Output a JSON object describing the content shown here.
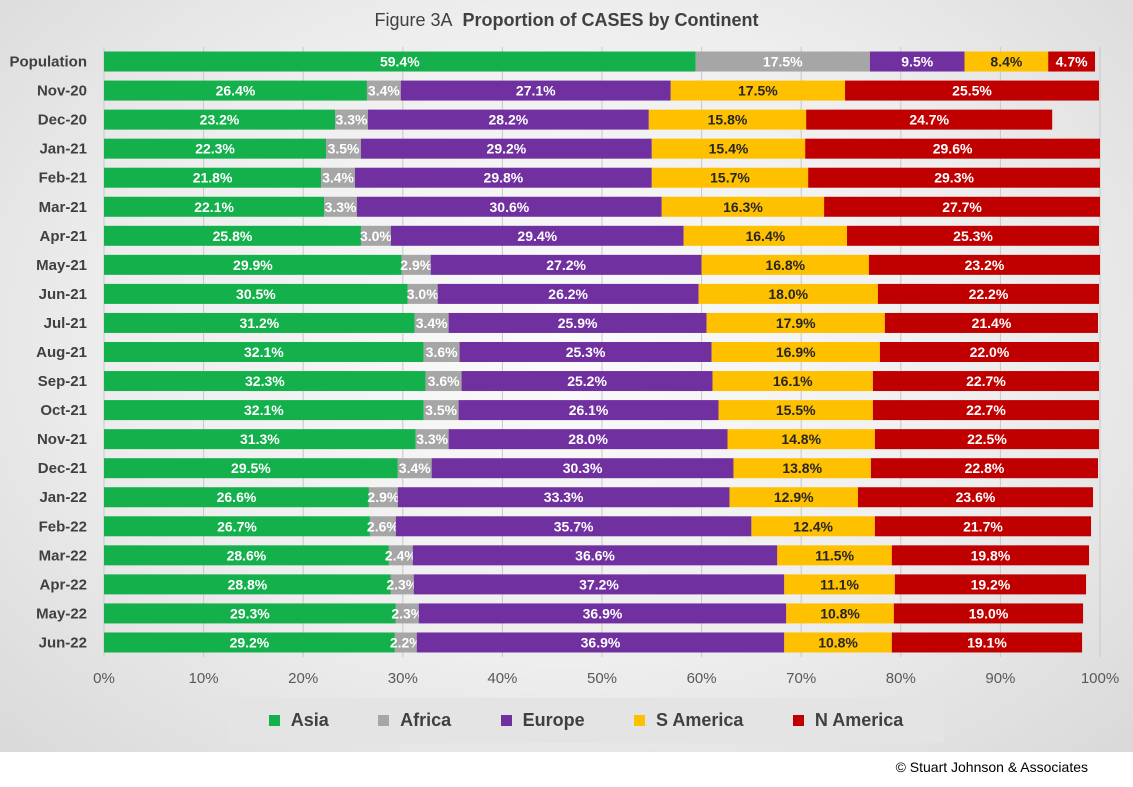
{
  "title": {
    "prefix": "Figure  3A",
    "main": "Proportion of CASES by Continent"
  },
  "copyright": "© Stuart Johnson & Associates",
  "chart_data": {
    "type": "bar",
    "orientation": "horizontal",
    "stacked": "percent",
    "title": "Figure 3A Proportion of CASES by Continent",
    "categories": [
      "Population",
      "Nov-20",
      "Dec-20",
      "Jan-21",
      "Feb-21",
      "Mar-21",
      "Apr-21",
      "May-21",
      "Jun-21",
      "Jul-21",
      "Aug-21",
      "Sep-21",
      "Oct-21",
      "Nov-21",
      "Dec-21",
      "Jan-22",
      "Feb-22",
      "Mar-22",
      "Apr-22",
      "May-22",
      "Jun-22"
    ],
    "series": [
      {
        "name": "Asia",
        "color": "#13b04b",
        "label_color": "#ffffff",
        "values": [
          59.4,
          26.4,
          23.2,
          22.3,
          21.8,
          22.1,
          25.8,
          29.9,
          30.5,
          31.2,
          32.1,
          32.3,
          32.1,
          31.3,
          29.5,
          26.6,
          26.7,
          28.6,
          28.8,
          29.3,
          29.2
        ]
      },
      {
        "name": "Africa",
        "color": "#a6a6a6",
        "label_color": "#ffffff",
        "values": [
          17.5,
          3.4,
          3.3,
          3.5,
          3.4,
          3.3,
          3.0,
          2.9,
          3.0,
          3.4,
          3.6,
          3.6,
          3.5,
          3.3,
          3.4,
          2.9,
          2.6,
          2.4,
          2.3,
          2.3,
          2.2
        ]
      },
      {
        "name": "Europe",
        "color": "#7030a0",
        "label_color": "#ffffff",
        "values": [
          9.5,
          27.1,
          28.2,
          29.2,
          29.8,
          30.6,
          29.4,
          27.2,
          26.2,
          25.9,
          25.3,
          25.2,
          26.1,
          28.0,
          30.3,
          33.3,
          35.7,
          36.6,
          37.2,
          36.9,
          36.9
        ]
      },
      {
        "name": "S America",
        "color": "#ffc000",
        "label_color": "#262626",
        "values": [
          8.4,
          17.5,
          15.8,
          15.4,
          15.7,
          16.3,
          16.4,
          16.8,
          18.0,
          17.9,
          16.9,
          16.1,
          15.5,
          14.8,
          13.8,
          12.9,
          12.4,
          11.5,
          11.1,
          10.8,
          10.8
        ]
      },
      {
        "name": "N America",
        "color": "#c00000",
        "label_color": "#ffffff",
        "values": [
          4.7,
          25.5,
          24.7,
          29.6,
          29.3,
          27.7,
          25.3,
          23.2,
          22.2,
          21.4,
          22.0,
          22.7,
          22.7,
          22.5,
          22.8,
          23.6,
          21.7,
          19.8,
          19.2,
          19.0,
          19.1
        ]
      }
    ],
    "xlim": [
      0,
      100
    ],
    "xticks": [
      "0%",
      "10%",
      "20%",
      "30%",
      "40%",
      "50%",
      "60%",
      "70%",
      "80%",
      "90%",
      "100%"
    ],
    "grid": true,
    "legend_position": "bottom"
  }
}
